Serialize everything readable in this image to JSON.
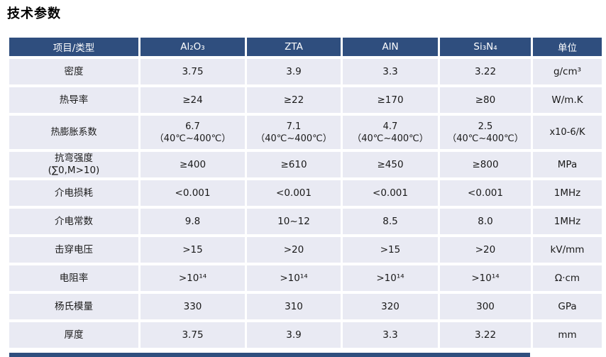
{
  "page": {
    "title": "技术参数"
  },
  "colors": {
    "header_bg": "#2f4e7e",
    "row_bg": "#e9eaf3",
    "header_text": "#ffffff",
    "body_text": "#1a1a1a"
  },
  "table": {
    "headers": [
      "项目/类型",
      "Al₂O₃",
      "ZTA",
      "AlN",
      "Si₃N₄",
      "单位"
    ],
    "rows": [
      {
        "label": "密度",
        "values": [
          "3.75",
          "3.9",
          "3.3",
          "3.22"
        ],
        "unit": "g/cm³",
        "tall": false
      },
      {
        "label": "热导率",
        "values": [
          "≥24",
          "≥22",
          "≥170",
          "≥80"
        ],
        "unit": "W/m.K",
        "tall": false
      },
      {
        "label": "热膨胀系数",
        "values": [
          "6.7\n（40℃~400℃）",
          "7.1\n（40℃~400℃）",
          "4.7\n（40℃~400℃）",
          "2.5\n（40℃~400℃）"
        ],
        "unit": "x10-6/K",
        "tall": true
      },
      {
        "label": "抗弯强度\n(∑0,M>10)",
        "values": [
          "≥400",
          "≥610",
          "≥450",
          "≥800"
        ],
        "unit": "MPa",
        "tall": false
      },
      {
        "label": "介电损耗",
        "values": [
          "<0.001",
          "<0.001",
          "<0.001",
          "<0.001"
        ],
        "unit": "1MHz",
        "tall": false
      },
      {
        "label": "介电常数",
        "values": [
          "9.8",
          "10~12",
          "8.5",
          "8.0"
        ],
        "unit": "1MHz",
        "tall": false
      },
      {
        "label": "击穿电压",
        "values": [
          ">15",
          ">20",
          ">15",
          ">20"
        ],
        "unit": "kV/mm",
        "tall": false
      },
      {
        "label": "电阻率",
        "values": [
          ">10¹⁴",
          ">10¹⁴",
          ">10¹⁴",
          ">10¹⁴"
        ],
        "unit": "Ω·cm",
        "tall": false
      },
      {
        "label": "杨氏模量",
        "values": [
          "330",
          "310",
          "320",
          "300"
        ],
        "unit": "GPa",
        "tall": false
      },
      {
        "label": "厚度",
        "values": [
          "3.75",
          "3.9",
          "3.3",
          "3.22"
        ],
        "unit": "mm",
        "tall": false
      }
    ]
  }
}
